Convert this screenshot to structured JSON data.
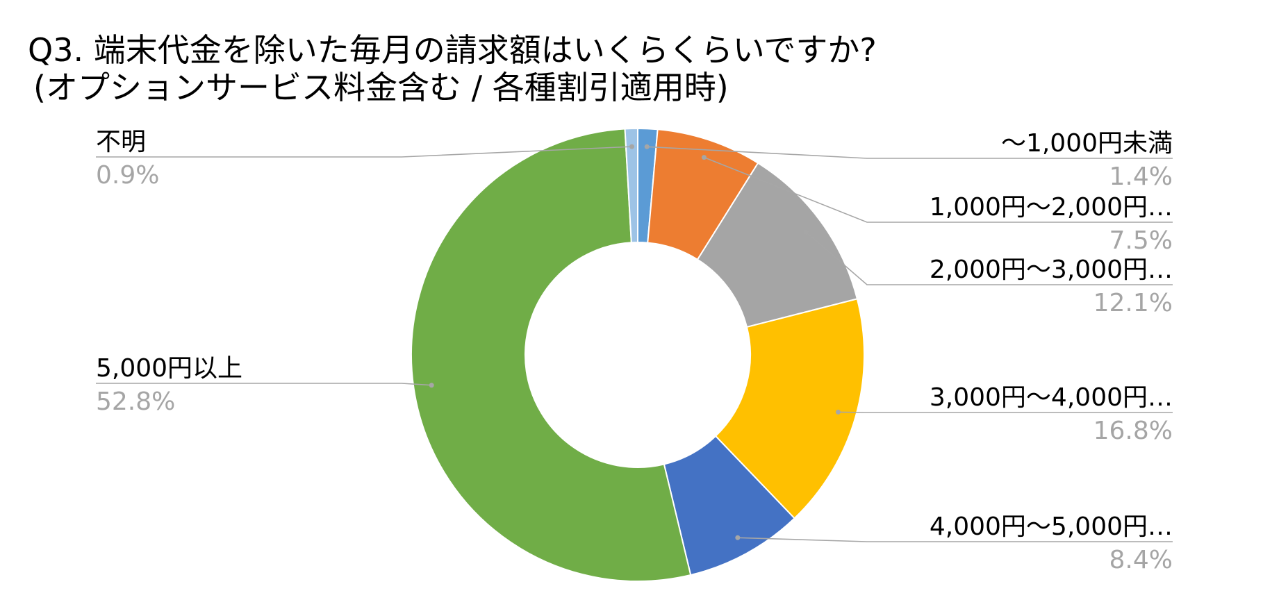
{
  "title": {
    "line1": "Q3. 端末代金を除いた毎月の請求額はいくらくらいですか?",
    "line2": "(オプションサービス料金含む / 各種割引適用時)"
  },
  "chart_data": {
    "type": "pie",
    "donut": true,
    "title": "Q3. 端末代金を除いた毎月の請求額はいくらくらいですか? (オプションサービス料金含む / 各種割引適用時)",
    "unit": "%",
    "slices": [
      {
        "label": "〜1,000円未満",
        "value": 1.4,
        "display": "1.4%",
        "color": "#5b9bd5"
      },
      {
        "label": "1,000円〜2,000円…",
        "value": 7.5,
        "display": "7.5%",
        "color": "#ed7d31"
      },
      {
        "label": "2,000円〜3,000円…",
        "value": 12.1,
        "display": "12.1%",
        "color": "#a5a5a5"
      },
      {
        "label": "3,000円〜4,000円…",
        "value": 16.8,
        "display": "16.8%",
        "color": "#ffc000"
      },
      {
        "label": "4,000円〜5,000円…",
        "value": 8.4,
        "display": "8.4%",
        "color": "#4472c4"
      },
      {
        "label": "5,000円以上",
        "value": 52.8,
        "display": "52.8%",
        "color": "#70ad47"
      },
      {
        "label": "不明",
        "value": 0.9,
        "display": "0.9%",
        "color": "#9dc3e6"
      }
    ],
    "label_color": "#000000",
    "value_color": "#a5a5a5",
    "leader_color": "#a6a6a6",
    "legend": "none"
  }
}
